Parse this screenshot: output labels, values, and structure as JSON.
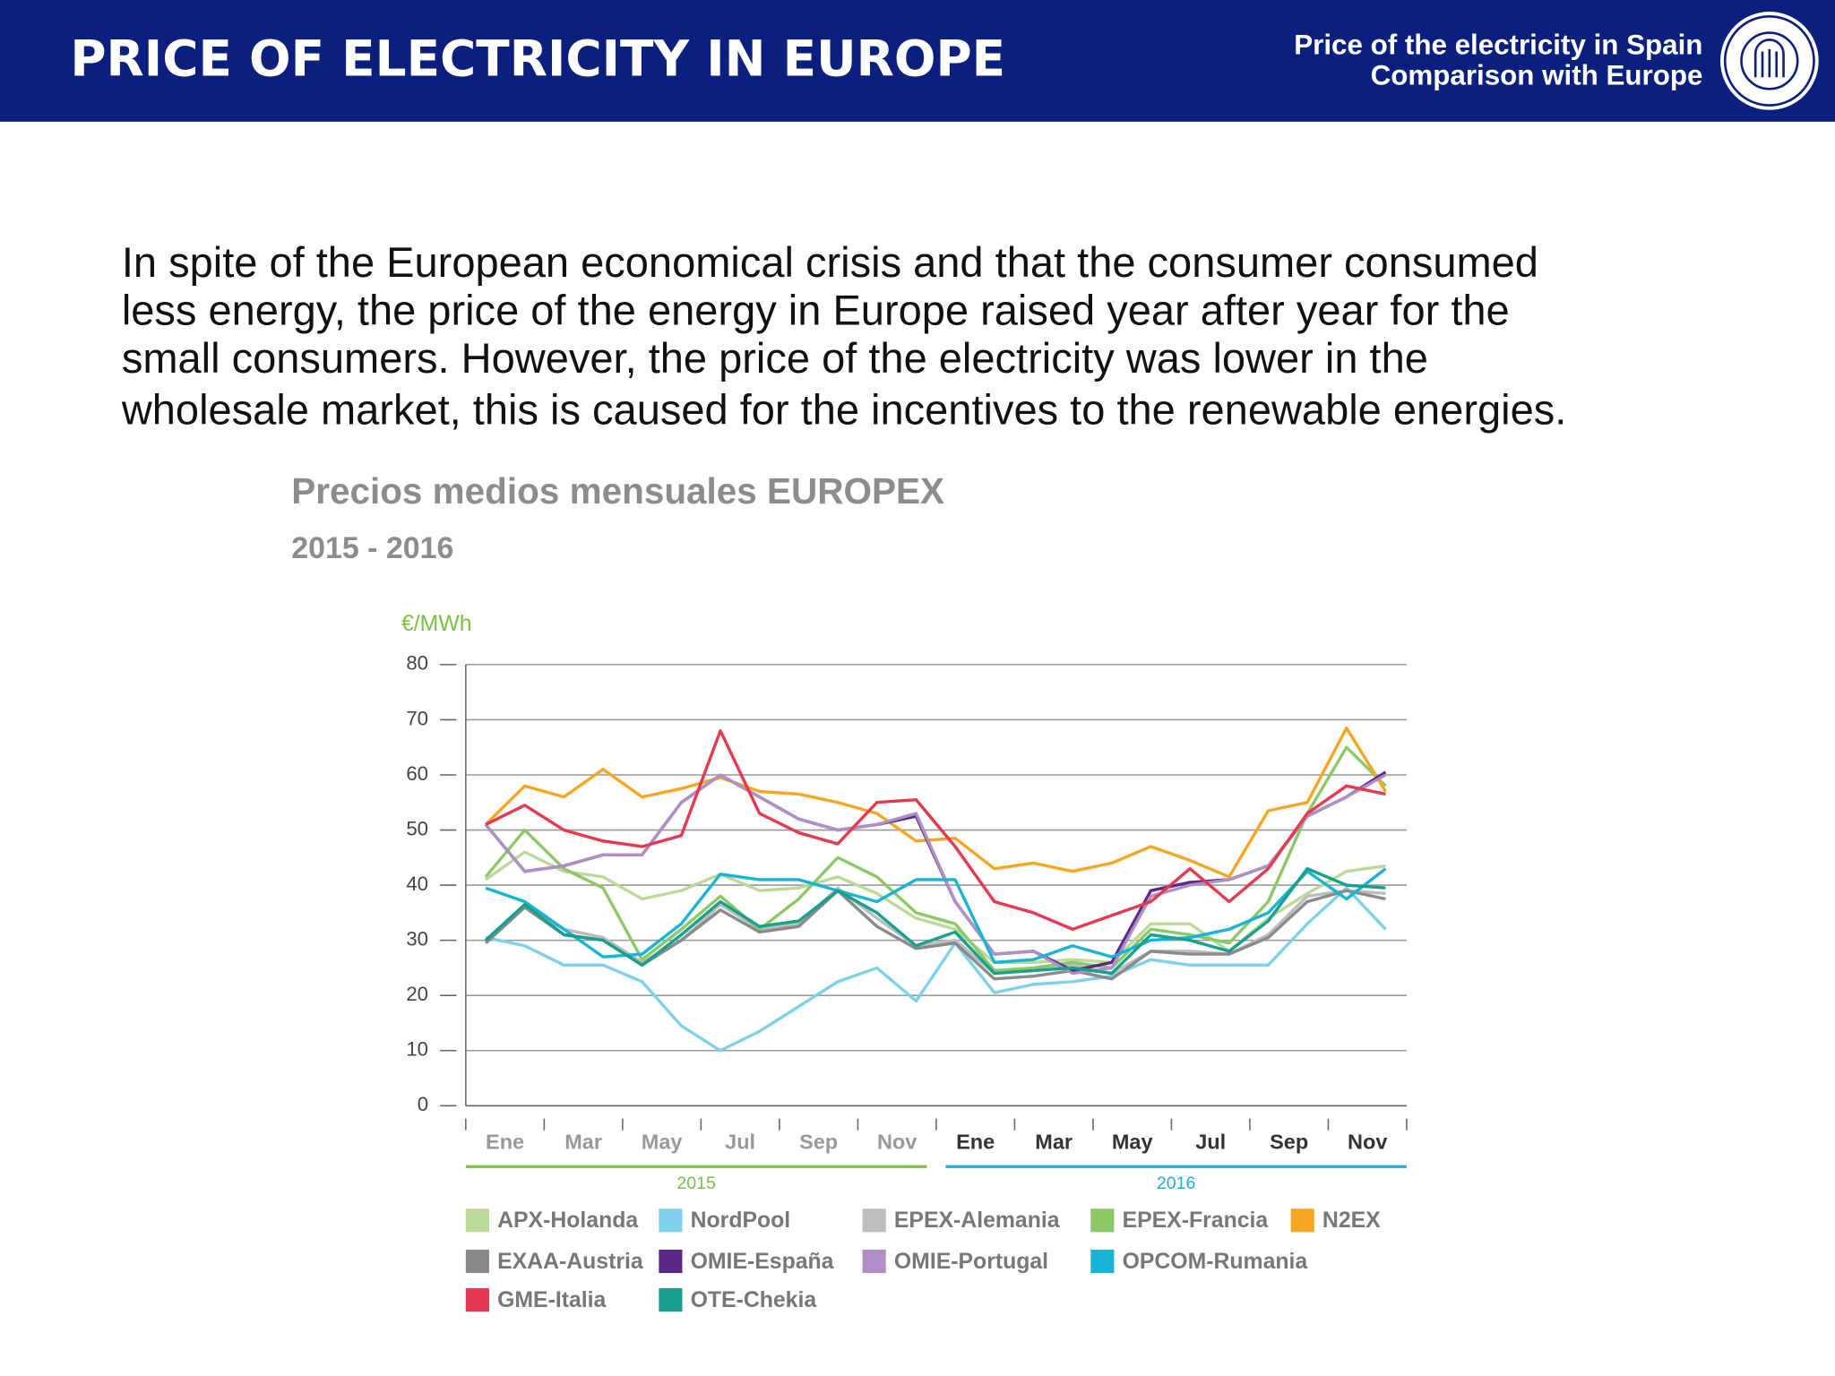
{
  "header": {
    "title": "PRICE OF ELECTRICITY IN EUROPE",
    "subtitle": [
      "Price of the electricity in Spain",
      "Comparison with Europe"
    ]
  },
  "paragraph": [
    "In spite of the European economical crisis and that the consumer consumed",
    "less energy, the price of the energy in Europe raised year after year for the",
    "small consumers. However, the price of the electricity was lower in the",
    "wholesale market, this is caused for the incentives to the renewable energies."
  ],
  "chart_data": {
    "type": "line",
    "title": "Precios medios mensuales EUROPEX",
    "subtitle": "2015 - 2016",
    "y_label": "€/MWh",
    "categories": [
      "Ene",
      null,
      "Mar",
      null,
      "May",
      null,
      "Jul",
      null,
      "Sep",
      null,
      "Nov",
      null,
      "Ene",
      null,
      "Mar",
      null,
      "May",
      null,
      "Jul",
      null,
      "Sep",
      null,
      "Nov",
      null
    ],
    "groups": [
      {
        "label": "2015",
        "color": "#7ac143"
      },
      {
        "label": "2016",
        "color": "#1fb0d0"
      }
    ],
    "ylim": [
      0,
      80
    ],
    "yticks": [
      0,
      10,
      20,
      30,
      40,
      50,
      60,
      70,
      80
    ],
    "grid": true,
    "series": [
      {
        "name": "APX-Holanda",
        "color": "#bcd99a",
        "values": [
          41,
          46,
          42.5,
          41.5,
          37.5,
          39,
          42,
          39,
          39.5,
          41.5,
          38.5,
          34,
          32,
          26,
          26,
          26.5,
          26,
          33,
          33,
          28,
          34,
          38.5,
          42.5,
          43.5
        ]
      },
      {
        "name": "NordPool",
        "color": "#7fd0ea",
        "values": [
          30.5,
          29,
          25.5,
          25.5,
          22.5,
          14.5,
          10,
          13.5,
          18,
          22.5,
          25,
          19,
          29.5,
          20.5,
          22,
          22.5,
          23.5,
          26.5,
          25.5,
          25.5,
          25.5,
          33,
          39.5,
          32
        ]
      },
      {
        "name": "EPEX-Alemania",
        "color": "#bdbdbd",
        "values": [
          30,
          36,
          32,
          30.5,
          26,
          30,
          36.5,
          32,
          33,
          39.5,
          34,
          29,
          30,
          24,
          24.5,
          25.5,
          24,
          28,
          28,
          27.5,
          31,
          38,
          39,
          38.5
        ]
      },
      {
        "name": "EPEX-Francia",
        "color": "#8cc866",
        "values": [
          41.5,
          50,
          43,
          39.5,
          26.5,
          32,
          38,
          32,
          37.5,
          45,
          41.5,
          35,
          33,
          24.5,
          25,
          26,
          25,
          32,
          31,
          29.5,
          37,
          53,
          65,
          58
        ]
      },
      {
        "name": "N2EX",
        "color": "#f5a623",
        "values": [
          51,
          58,
          56,
          61,
          56,
          57.5,
          59.5,
          57,
          56.5,
          55,
          53,
          48,
          48.5,
          43,
          44,
          42.5,
          44,
          47,
          44.5,
          41.5,
          53.5,
          55,
          68.5,
          57
        ]
      },
      {
        "name": "EXAA-Austria",
        "color": "#8a8a8a",
        "values": [
          29.5,
          36,
          31,
          30,
          25.5,
          30,
          35.5,
          31.5,
          32.5,
          39,
          32.5,
          28.5,
          29.5,
          23,
          23.5,
          24.5,
          23,
          28,
          27.5,
          27.5,
          30.5,
          37,
          39,
          37.5
        ]
      },
      {
        "name": "OMIE-España",
        "color": "#5b2a86",
        "values": [
          51,
          42.5,
          43.5,
          45.5,
          45.5,
          55,
          60,
          56,
          52,
          50,
          51,
          52.5,
          37,
          27.5,
          28,
          24.5,
          26,
          39,
          40.5,
          41,
          43.5,
          52.5,
          56,
          60.5
        ]
      },
      {
        "name": "OMIE-Portugal",
        "color": "#b08fc7",
        "values": [
          51,
          42.5,
          43.5,
          45.5,
          45.5,
          55,
          60,
          56,
          52,
          50,
          51,
          53,
          37,
          27.5,
          28,
          24,
          25,
          38,
          40,
          41,
          43.5,
          52.5,
          56,
          60
        ]
      },
      {
        "name": "OPCOM-Rumania",
        "color": "#18b4d6",
        "values": [
          39.5,
          37,
          32,
          27,
          27.5,
          33,
          42,
          41,
          41,
          39,
          37,
          41,
          41,
          26,
          26.5,
          29,
          27,
          30,
          30.5,
          32,
          35,
          42.5,
          37.5,
          43
        ]
      },
      {
        "name": "GME-Italia",
        "color": "#e63950",
        "values": [
          51,
          54.5,
          50,
          48,
          47,
          49,
          68,
          53,
          49.5,
          47.5,
          55,
          55.5,
          47,
          37,
          35,
          32,
          34.5,
          37,
          43,
          37,
          43,
          53,
          58,
          56.5
        ]
      },
      {
        "name": "OTE-Chekia",
        "color": "#16a08e",
        "values": [
          30,
          36.5,
          31,
          30,
          25.5,
          31,
          37,
          32.5,
          33.5,
          39,
          35,
          29,
          31.5,
          24,
          24.5,
          25,
          24,
          31,
          30,
          28,
          33.5,
          43,
          40,
          39.5
        ]
      }
    ]
  }
}
